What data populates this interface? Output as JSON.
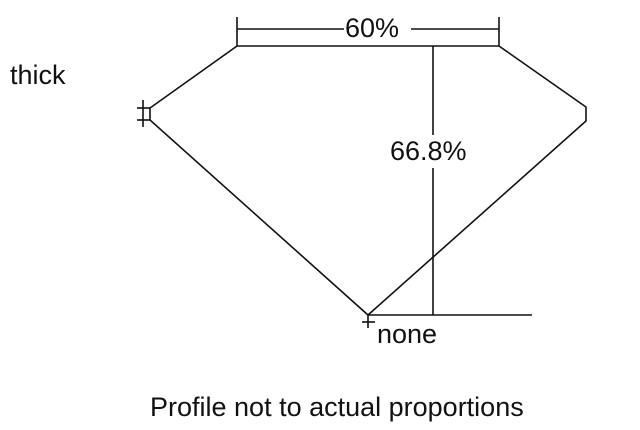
{
  "diagram": {
    "table_percent": "60%",
    "depth_percent": "66.8%",
    "girdle": "thick",
    "culet": "none",
    "caption": "Profile not to actual proportions",
    "line_color": "#111111"
  }
}
